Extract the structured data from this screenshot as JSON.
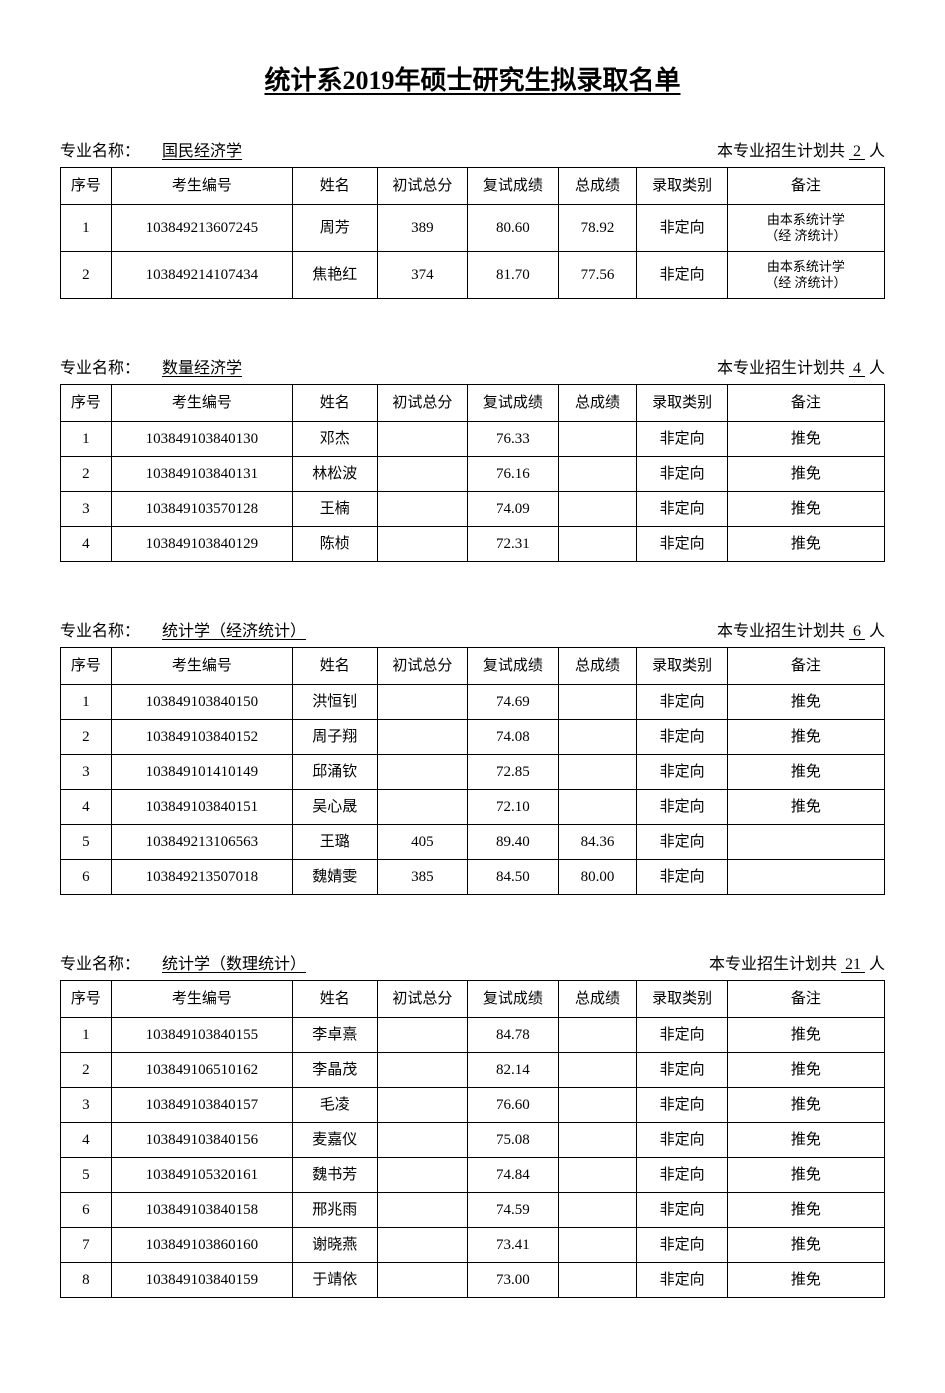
{
  "title": "统计系2019年硕士研究生拟录取名单",
  "labels": {
    "major_label": "专业名称：",
    "plan_prefix": "本专业招生计划共",
    "plan_suffix": "人"
  },
  "columns": [
    "序号",
    "考生编号",
    "姓名",
    "初试总分",
    "复试成绩",
    "总成绩",
    "录取类别",
    "备注"
  ],
  "sections": [
    {
      "major": "国民经济学",
      "plan": "2",
      "tall": true,
      "rows": [
        [
          "1",
          "103849213607245",
          "周芳",
          "389",
          "80.60",
          "78.92",
          "非定向",
          "由本系统计学\n（经 济统计）"
        ],
        [
          "2",
          "103849214107434",
          "焦艳红",
          "374",
          "81.70",
          "77.56",
          "非定向",
          "由本系统计学\n（经 济统计）"
        ]
      ]
    },
    {
      "major": "数量经济学",
      "plan": "4",
      "tall": false,
      "rows": [
        [
          "1",
          "103849103840130",
          "邓杰",
          "",
          "76.33",
          "",
          "非定向",
          "推免"
        ],
        [
          "2",
          "103849103840131",
          "林松波",
          "",
          "76.16",
          "",
          "非定向",
          "推免"
        ],
        [
          "3",
          "103849103570128",
          "王楠",
          "",
          "74.09",
          "",
          "非定向",
          "推免"
        ],
        [
          "4",
          "103849103840129",
          "陈桢",
          "",
          "72.31",
          "",
          "非定向",
          "推免"
        ]
      ]
    },
    {
      "major": "统计学（经济统计）",
      "plan": "6",
      "tall": false,
      "rows": [
        [
          "1",
          "103849103840150",
          "洪恒钊",
          "",
          "74.69",
          "",
          "非定向",
          "推免"
        ],
        [
          "2",
          "103849103840152",
          "周子翔",
          "",
          "74.08",
          "",
          "非定向",
          "推免"
        ],
        [
          "3",
          "103849101410149",
          "邱涌钦",
          "",
          "72.85",
          "",
          "非定向",
          "推免"
        ],
        [
          "4",
          "103849103840151",
          "吴心晟",
          "",
          "72.10",
          "",
          "非定向",
          "推免"
        ],
        [
          "5",
          "103849213106563",
          "王璐",
          "405",
          "89.40",
          "84.36",
          "非定向",
          ""
        ],
        [
          "6",
          "103849213507018",
          "魏婧雯",
          "385",
          "84.50",
          "80.00",
          "非定向",
          ""
        ]
      ]
    },
    {
      "major": "统计学（数理统计）",
      "plan": "21",
      "tall": false,
      "rows": [
        [
          "1",
          "103849103840155",
          "李卓熹",
          "",
          "84.78",
          "",
          "非定向",
          "推免"
        ],
        [
          "2",
          "103849106510162",
          "李晶茂",
          "",
          "82.14",
          "",
          "非定向",
          "推免"
        ],
        [
          "3",
          "103849103840157",
          "毛凌",
          "",
          "76.60",
          "",
          "非定向",
          "推免"
        ],
        [
          "4",
          "103849103840156",
          "麦嘉仪",
          "",
          "75.08",
          "",
          "非定向",
          "推免"
        ],
        [
          "5",
          "103849105320161",
          "魏书芳",
          "",
          "74.84",
          "",
          "非定向",
          "推免"
        ],
        [
          "6",
          "103849103840158",
          "邢兆雨",
          "",
          "74.59",
          "",
          "非定向",
          "推免"
        ],
        [
          "7",
          "103849103860160",
          "谢晓燕",
          "",
          "73.41",
          "",
          "非定向",
          "推免"
        ],
        [
          "8",
          "103849103840159",
          "于靖依",
          "",
          "73.00",
          "",
          "非定向",
          "推免"
        ]
      ]
    }
  ]
}
